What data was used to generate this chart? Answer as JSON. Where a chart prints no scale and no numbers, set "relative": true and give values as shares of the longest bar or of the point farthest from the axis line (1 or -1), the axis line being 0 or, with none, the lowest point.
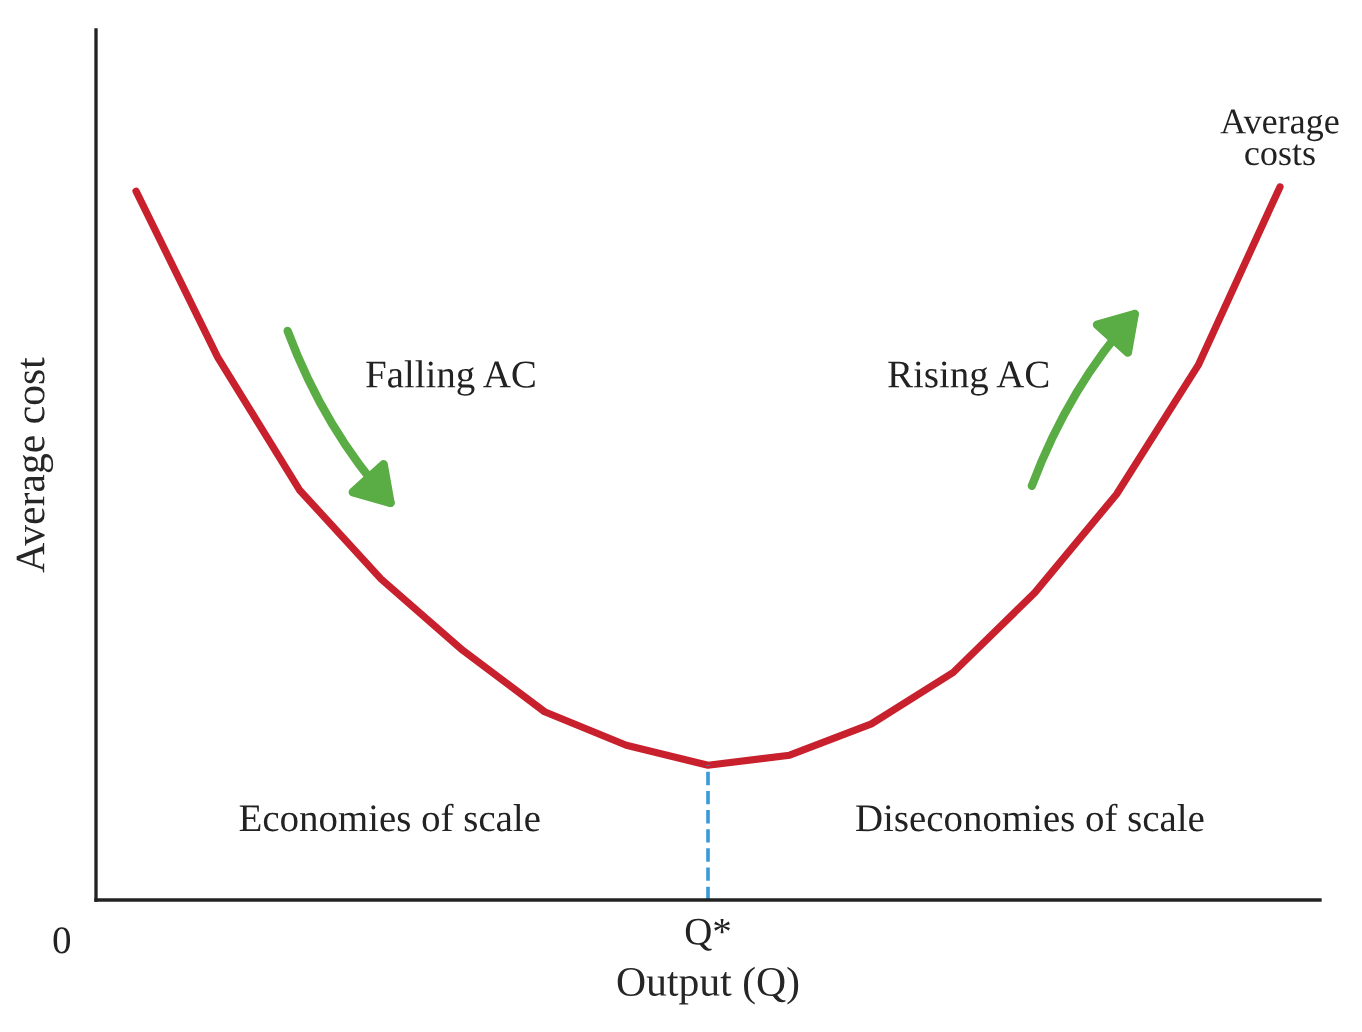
{
  "chart_data": {
    "type": "line",
    "relative": true,
    "xlabel": "Output (Q)",
    "ylabel": "Average cost",
    "categories": [
      null,
      null,
      null,
      null,
      null,
      null,
      null,
      null,
      null,
      null,
      null,
      null,
      null,
      null,
      null
    ],
    "series": [
      {
        "name": "Average\ncosts",
        "color": "#c8202c",
        "values": [
          0.994,
          0.761,
          0.575,
          0.45,
          0.35,
          0.264,
          0.217,
          0.189,
          0.203,
          0.247,
          0.319,
          0.431,
          0.569,
          0.75,
          1.0
        ]
      }
    ],
    "annotations": [
      "0",
      "Q*",
      "Falling AC",
      "Rising AC",
      "Economies of scale",
      "Diseconomies of scale"
    ],
    "grid": false,
    "legend": false,
    "marker": "none",
    "line_style": "solid"
  }
}
